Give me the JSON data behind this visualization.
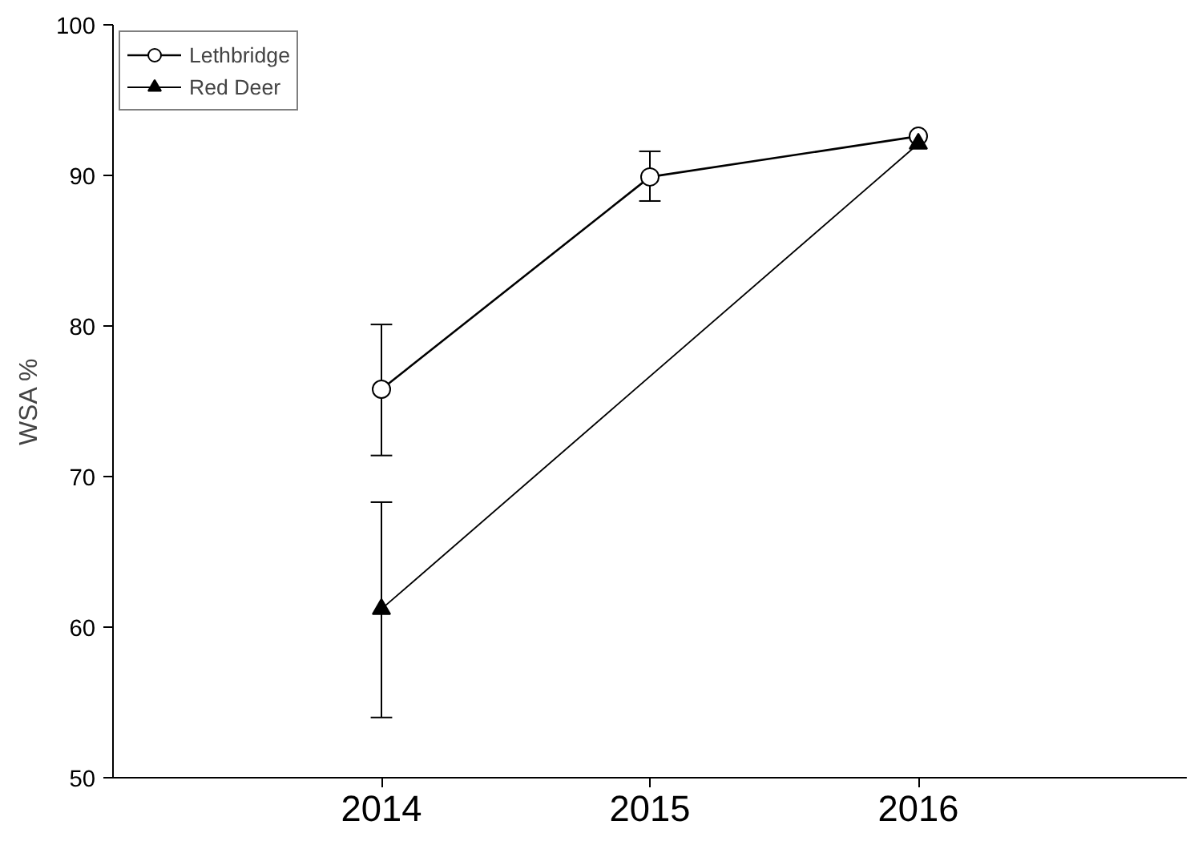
{
  "chart_data": {
    "type": "line",
    "ylabel": "WSA %",
    "xlim": [
      2013,
      2017
    ],
    "xticks": [
      2014,
      2015,
      2016
    ],
    "ylim": [
      50,
      100
    ],
    "yticks": [
      50,
      60,
      70,
      80,
      90,
      100
    ],
    "grid": false,
    "legend": "top left",
    "series": [
      {
        "name": "Lethbridge",
        "color": "#000000",
        "marker": "circle",
        "x": [
          2014,
          2015,
          2016
        ],
        "values": [
          75.8,
          89.9,
          92.6
        ],
        "errors": [
          [
            71.4,
            80.1
          ],
          [
            88.3,
            91.6
          ],
          null
        ]
      },
      {
        "name": "Red Deer",
        "color": "#000000",
        "marker": "triangle",
        "x": [
          2014,
          2016
        ],
        "values": [
          61.2,
          92.1
        ],
        "errors": [
          [
            54.0,
            68.3
          ],
          null
        ]
      }
    ]
  }
}
